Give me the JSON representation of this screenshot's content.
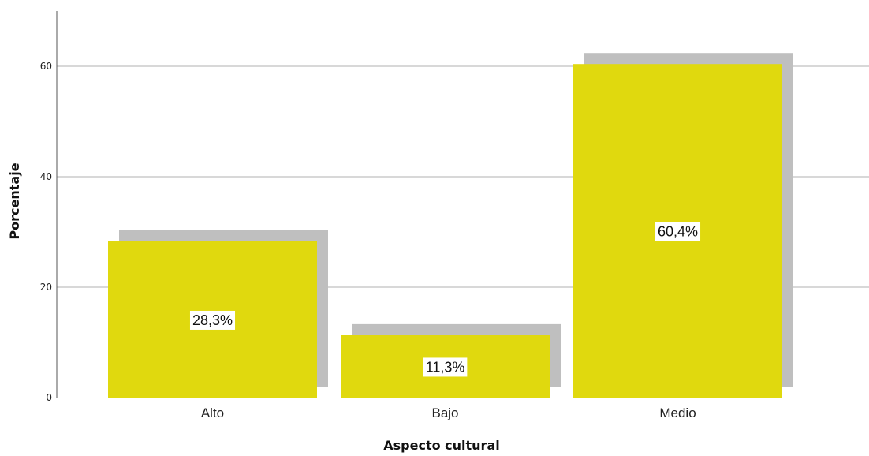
{
  "chart_data": {
    "type": "bar",
    "categories": [
      "Alto",
      "Bajo",
      "Medio"
    ],
    "values": [
      28.3,
      11.3,
      60.4
    ],
    "data_labels": [
      "28,3%",
      "11,3%",
      "60,4%"
    ],
    "title": "",
    "xlabel": "Aspecto cultural",
    "ylabel": "Porcentaje",
    "ylim": [
      0,
      70
    ],
    "yticks": [
      0,
      20,
      40,
      60
    ],
    "ytick_labels": [
      "0",
      "20",
      "40",
      "60"
    ],
    "grid": true,
    "legend": "none",
    "colors": {
      "bar": "#e0d90e",
      "shadow": "#bfbfbf",
      "grid": "#b0b0b0",
      "axis": "#555555",
      "label_box": "#ffffff"
    }
  }
}
